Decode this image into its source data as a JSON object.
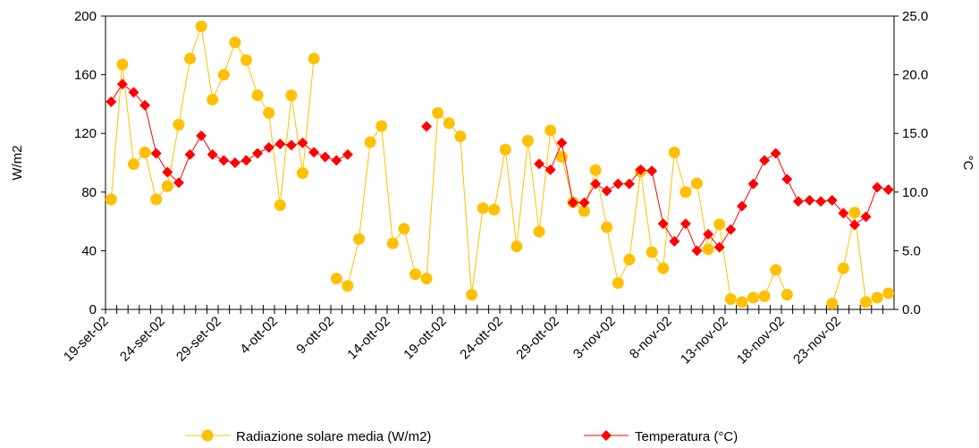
{
  "chart_data": {
    "type": "line",
    "y_label": "W/m2",
    "y2_label": "°C",
    "categories": [
      "19-set-02",
      null,
      null,
      null,
      null,
      "24-set-02",
      null,
      null,
      null,
      null,
      "29-set-02",
      null,
      null,
      null,
      null,
      "4-ott-02",
      null,
      null,
      null,
      null,
      "9-ott-02",
      null,
      null,
      null,
      null,
      "14-ott-02",
      null,
      null,
      null,
      null,
      "19-ott-02",
      null,
      null,
      null,
      null,
      "24-ott-02",
      null,
      null,
      null,
      null,
      "29-ott-02",
      null,
      null,
      null,
      null,
      "3-nov-02",
      null,
      null,
      null,
      null,
      "8-nov-02",
      null,
      null,
      null,
      null,
      "13-nov-02",
      null,
      null,
      null,
      null,
      "18-nov-02",
      null,
      null,
      null,
      null,
      "23-nov-02",
      null,
      null,
      null,
      null
    ],
    "ylim": [
      0,
      200
    ],
    "yticks": [
      0,
      40,
      80,
      120,
      160,
      200
    ],
    "y2lim": [
      0,
      25
    ],
    "y2ticks": [
      {
        "value": 0,
        "label": "0.0"
      },
      {
        "value": 5,
        "label": "5.0"
      },
      {
        "value": 10,
        "label": "10.0"
      },
      {
        "value": 15,
        "label": "15.0"
      },
      {
        "value": 20,
        "label": "20.0"
      },
      {
        "value": 25,
        "label": "25.0"
      }
    ],
    "legend": "bottom",
    "series": [
      {
        "name": "Radiazione solare media (W/m2)",
        "color": "#ffc000",
        "marker": "circle",
        "values": [
          75,
          167,
          99,
          107,
          75,
          84,
          126,
          171,
          193,
          143,
          160,
          182,
          170,
          146,
          134,
          71,
          146,
          93,
          171,
          null,
          21,
          16,
          48,
          114,
          125,
          45,
          55,
          24,
          21,
          134,
          127,
          118,
          10,
          69,
          68,
          109,
          43,
          115,
          53,
          122,
          104,
          73,
          67,
          95,
          56,
          18,
          34,
          94,
          39,
          28,
          107,
          80,
          86,
          41,
          58,
          7,
          5,
          8,
          9,
          27,
          10,
          null,
          null,
          null,
          4,
          28,
          66,
          5,
          8,
          11
        ]
      },
      {
        "name": "Temperatura (°C)",
        "color": "#ff0000",
        "marker": "diamond",
        "axis": "y2",
        "values": [
          17.7,
          19.2,
          18.5,
          17.4,
          13.3,
          11.7,
          10.8,
          13.2,
          14.8,
          13.2,
          12.7,
          12.5,
          12.7,
          13.3,
          13.8,
          14.1,
          14.0,
          14.2,
          13.4,
          13.0,
          12.7,
          13.2,
          null,
          null,
          null,
          null,
          null,
          null,
          15.6,
          null,
          null,
          null,
          null,
          null,
          null,
          null,
          null,
          null,
          12.4,
          11.9,
          14.2,
          9.1,
          9.1,
          10.7,
          10.1,
          10.7,
          10.7,
          11.9,
          11.8,
          7.3,
          5.8,
          7.3,
          5.0,
          6.4,
          5.3,
          6.8,
          8.8,
          10.7,
          12.7,
          13.3,
          11.1,
          9.2,
          9.3,
          9.2,
          9.3,
          8.2,
          7.2,
          7.9,
          10.4,
          10.2
        ]
      }
    ]
  }
}
